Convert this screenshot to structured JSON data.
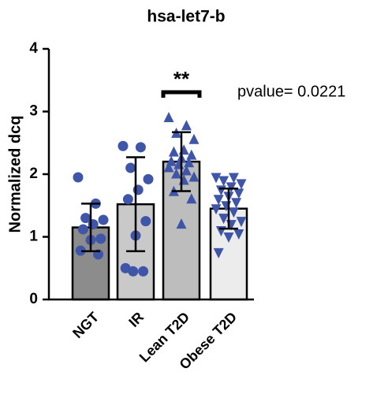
{
  "chart_data": {
    "type": "bar",
    "title": "hsa-let7-b",
    "y_label": "Normalized dcq",
    "categories": [
      "NGT",
      "IR",
      "Lean T2D",
      "Obese T2D"
    ],
    "values": [
      1.15,
      1.52,
      2.2,
      1.45
    ],
    "errors": [
      0.38,
      0.75,
      0.47,
      0.32
    ],
    "colors": [
      "#8c8c8c",
      "#c9c9c9",
      "#bdbdbd",
      "#ececec"
    ],
    "point_color": "#3f55a8",
    "markers": [
      "circle",
      "circle",
      "triangle-up",
      "triangle-down"
    ],
    "points": [
      [
        1.95,
        1.53,
        1.3,
        1.27,
        1.2,
        1.12,
        0.97,
        0.95,
        0.78,
        0.72
      ],
      [
        2.45,
        2.43,
        2.1,
        1.92,
        1.75,
        1.6,
        1.25,
        1.02,
        0.5,
        0.45,
        0.45
      ],
      [
        2.9,
        2.77,
        2.65,
        2.55,
        2.38,
        2.35,
        2.3,
        2.25,
        2.2,
        2.18,
        2.15,
        2.1,
        2.05,
        2.0,
        1.95,
        1.9,
        1.72,
        1.6,
        1.2
      ],
      [
        1.95,
        1.95,
        1.9,
        1.85,
        1.8,
        1.75,
        1.7,
        1.65,
        1.6,
        1.55,
        1.5,
        1.45,
        1.4,
        1.3,
        1.25,
        1.2,
        1.1,
        1.05,
        1.0,
        0.75
      ]
    ],
    "ylim": [
      0,
      4
    ],
    "yticks": [
      0,
      1,
      2,
      3,
      4
    ],
    "annotations": {
      "significance": "**",
      "pvalue": "pvalue= 0.0221"
    }
  }
}
